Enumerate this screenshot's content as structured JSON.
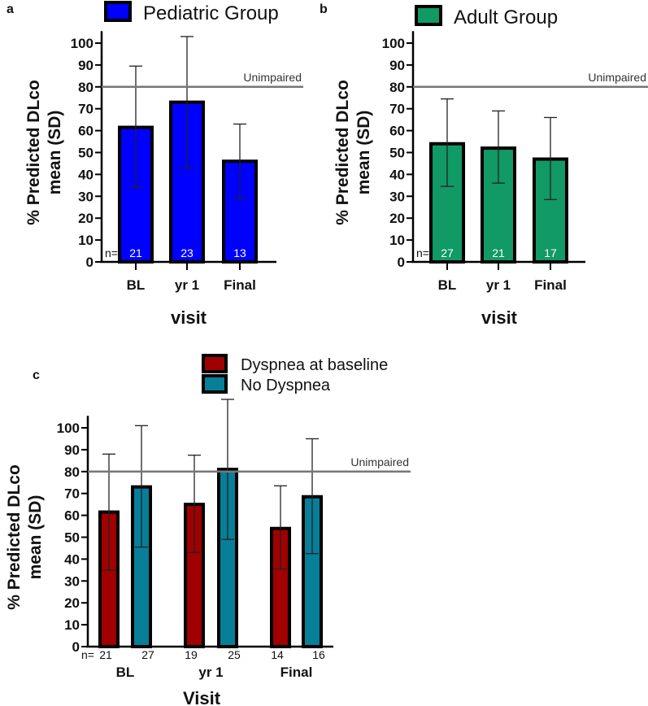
{
  "chart_data": [
    {
      "type": "bar",
      "panel": "a",
      "legend": [
        "Pediatric Group"
      ],
      "color": "#0000ff",
      "categories": [
        "BL",
        "yr 1",
        "Final"
      ],
      "values": [
        61.5,
        73,
        46
      ],
      "err_low": [
        34,
        43,
        29
      ],
      "err_high": [
        89.5,
        103,
        63
      ],
      "n": [
        "21",
        "23",
        "13"
      ],
      "n_prefix": "n=",
      "ylabel": "% Predicted DLco mean (SD)",
      "xlabel": "visit",
      "ylim": [
        0,
        100
      ],
      "yticks": [
        "0",
        "10",
        "20",
        "30",
        "40",
        "50",
        "60",
        "70",
        "80",
        "90",
        "100"
      ],
      "reference": {
        "value": 80,
        "label": "Unimpaired"
      }
    },
    {
      "type": "bar",
      "panel": "b",
      "legend": [
        "Adult Group"
      ],
      "color": "#119966",
      "categories": [
        "BL",
        "yr 1",
        "Final"
      ],
      "values": [
        54,
        52,
        47
      ],
      "err_low": [
        34.5,
        36,
        28.5
      ],
      "err_high": [
        74.5,
        69,
        66
      ],
      "n": [
        "27",
        "21",
        "17"
      ],
      "n_prefix": "n=",
      "ylabel": "% Predicted DLco mean (SD)",
      "xlabel": "visit",
      "ylim": [
        0,
        100
      ],
      "yticks": [
        "0",
        "10",
        "20",
        "30",
        "40",
        "50",
        "60",
        "70",
        "80",
        "90",
        "100"
      ],
      "reference": {
        "value": 80,
        "label": "Unimpaired"
      }
    },
    {
      "type": "bar",
      "panel": "c",
      "categories": [
        "BL",
        "yr 1",
        "Final"
      ],
      "series": [
        {
          "name": "Dyspnea at baseline",
          "color": "#a00000",
          "values": [
            61.5,
            65,
            54
          ],
          "err_low": [
            35,
            43,
            35.5
          ],
          "err_high": [
            88,
            87.5,
            73.5
          ],
          "n": [
            "21",
            "19",
            "14"
          ]
        },
        {
          "name": "No Dyspnea",
          "color": "#077f99",
          "values": [
            73,
            81,
            68.5
          ],
          "err_low": [
            45.5,
            49,
            42.5
          ],
          "err_high": [
            101,
            113,
            95
          ],
          "n": [
            "27",
            "25",
            "16"
          ]
        }
      ],
      "n_prefix": "n=",
      "ylabel": "% Predicted DLco mean (SD)",
      "xlabel": "Visit",
      "ylim": [
        0,
        100
      ],
      "yticks": [
        "0",
        "10",
        "20",
        "30",
        "40",
        "50",
        "60",
        "70",
        "80",
        "90",
        "100"
      ],
      "reference": {
        "value": 80,
        "label": "Unimpaired"
      }
    }
  ]
}
